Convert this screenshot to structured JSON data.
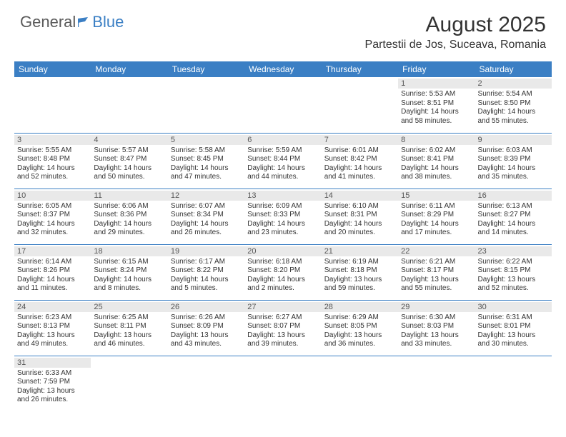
{
  "brand": {
    "part1": "General",
    "part2": "Blue"
  },
  "title": "August 2025",
  "location": "Partestii de Jos, Suceava, Romania",
  "colors": {
    "header_bg": "#3b7fc4",
    "header_text": "#ffffff",
    "daynum_bg": "#e9e9e9",
    "daynum_text": "#555555",
    "divider": "#3b7fc4",
    "body_text": "#333333",
    "logo_gray": "#5a5a5a",
    "logo_blue": "#3b7fc4"
  },
  "fonts": {
    "title_size": 30,
    "location_size": 16,
    "th_size": 12,
    "day_size": 11,
    "info_size": 10
  },
  "columns": [
    "Sunday",
    "Monday",
    "Tuesday",
    "Wednesday",
    "Thursday",
    "Friday",
    "Saturday"
  ],
  "days": [
    {
      "n": "1",
      "sr": "5:53 AM",
      "ss": "8:51 PM",
      "dl": "14 hours and 58 minutes."
    },
    {
      "n": "2",
      "sr": "5:54 AM",
      "ss": "8:50 PM",
      "dl": "14 hours and 55 minutes."
    },
    {
      "n": "3",
      "sr": "5:55 AM",
      "ss": "8:48 PM",
      "dl": "14 hours and 52 minutes."
    },
    {
      "n": "4",
      "sr": "5:57 AM",
      "ss": "8:47 PM",
      "dl": "14 hours and 50 minutes."
    },
    {
      "n": "5",
      "sr": "5:58 AM",
      "ss": "8:45 PM",
      "dl": "14 hours and 47 minutes."
    },
    {
      "n": "6",
      "sr": "5:59 AM",
      "ss": "8:44 PM",
      "dl": "14 hours and 44 minutes."
    },
    {
      "n": "7",
      "sr": "6:01 AM",
      "ss": "8:42 PM",
      "dl": "14 hours and 41 minutes."
    },
    {
      "n": "8",
      "sr": "6:02 AM",
      "ss": "8:41 PM",
      "dl": "14 hours and 38 minutes."
    },
    {
      "n": "9",
      "sr": "6:03 AM",
      "ss": "8:39 PM",
      "dl": "14 hours and 35 minutes."
    },
    {
      "n": "10",
      "sr": "6:05 AM",
      "ss": "8:37 PM",
      "dl": "14 hours and 32 minutes."
    },
    {
      "n": "11",
      "sr": "6:06 AM",
      "ss": "8:36 PM",
      "dl": "14 hours and 29 minutes."
    },
    {
      "n": "12",
      "sr": "6:07 AM",
      "ss": "8:34 PM",
      "dl": "14 hours and 26 minutes."
    },
    {
      "n": "13",
      "sr": "6:09 AM",
      "ss": "8:33 PM",
      "dl": "14 hours and 23 minutes."
    },
    {
      "n": "14",
      "sr": "6:10 AM",
      "ss": "8:31 PM",
      "dl": "14 hours and 20 minutes."
    },
    {
      "n": "15",
      "sr": "6:11 AM",
      "ss": "8:29 PM",
      "dl": "14 hours and 17 minutes."
    },
    {
      "n": "16",
      "sr": "6:13 AM",
      "ss": "8:27 PM",
      "dl": "14 hours and 14 minutes."
    },
    {
      "n": "17",
      "sr": "6:14 AM",
      "ss": "8:26 PM",
      "dl": "14 hours and 11 minutes."
    },
    {
      "n": "18",
      "sr": "6:15 AM",
      "ss": "8:24 PM",
      "dl": "14 hours and 8 minutes."
    },
    {
      "n": "19",
      "sr": "6:17 AM",
      "ss": "8:22 PM",
      "dl": "14 hours and 5 minutes."
    },
    {
      "n": "20",
      "sr": "6:18 AM",
      "ss": "8:20 PM",
      "dl": "14 hours and 2 minutes."
    },
    {
      "n": "21",
      "sr": "6:19 AM",
      "ss": "8:18 PM",
      "dl": "13 hours and 59 minutes."
    },
    {
      "n": "22",
      "sr": "6:21 AM",
      "ss": "8:17 PM",
      "dl": "13 hours and 55 minutes."
    },
    {
      "n": "23",
      "sr": "6:22 AM",
      "ss": "8:15 PM",
      "dl": "13 hours and 52 minutes."
    },
    {
      "n": "24",
      "sr": "6:23 AM",
      "ss": "8:13 PM",
      "dl": "13 hours and 49 minutes."
    },
    {
      "n": "25",
      "sr": "6:25 AM",
      "ss": "8:11 PM",
      "dl": "13 hours and 46 minutes."
    },
    {
      "n": "26",
      "sr": "6:26 AM",
      "ss": "8:09 PM",
      "dl": "13 hours and 43 minutes."
    },
    {
      "n": "27",
      "sr": "6:27 AM",
      "ss": "8:07 PM",
      "dl": "13 hours and 39 minutes."
    },
    {
      "n": "28",
      "sr": "6:29 AM",
      "ss": "8:05 PM",
      "dl": "13 hours and 36 minutes."
    },
    {
      "n": "29",
      "sr": "6:30 AM",
      "ss": "8:03 PM",
      "dl": "13 hours and 33 minutes."
    },
    {
      "n": "30",
      "sr": "6:31 AM",
      "ss": "8:01 PM",
      "dl": "13 hours and 30 minutes."
    },
    {
      "n": "31",
      "sr": "6:33 AM",
      "ss": "7:59 PM",
      "dl": "13 hours and 26 minutes."
    }
  ],
  "first_weekday_index": 5,
  "labels": {
    "sunrise": "Sunrise: ",
    "sunset": "Sunset: ",
    "daylight": "Daylight: "
  }
}
